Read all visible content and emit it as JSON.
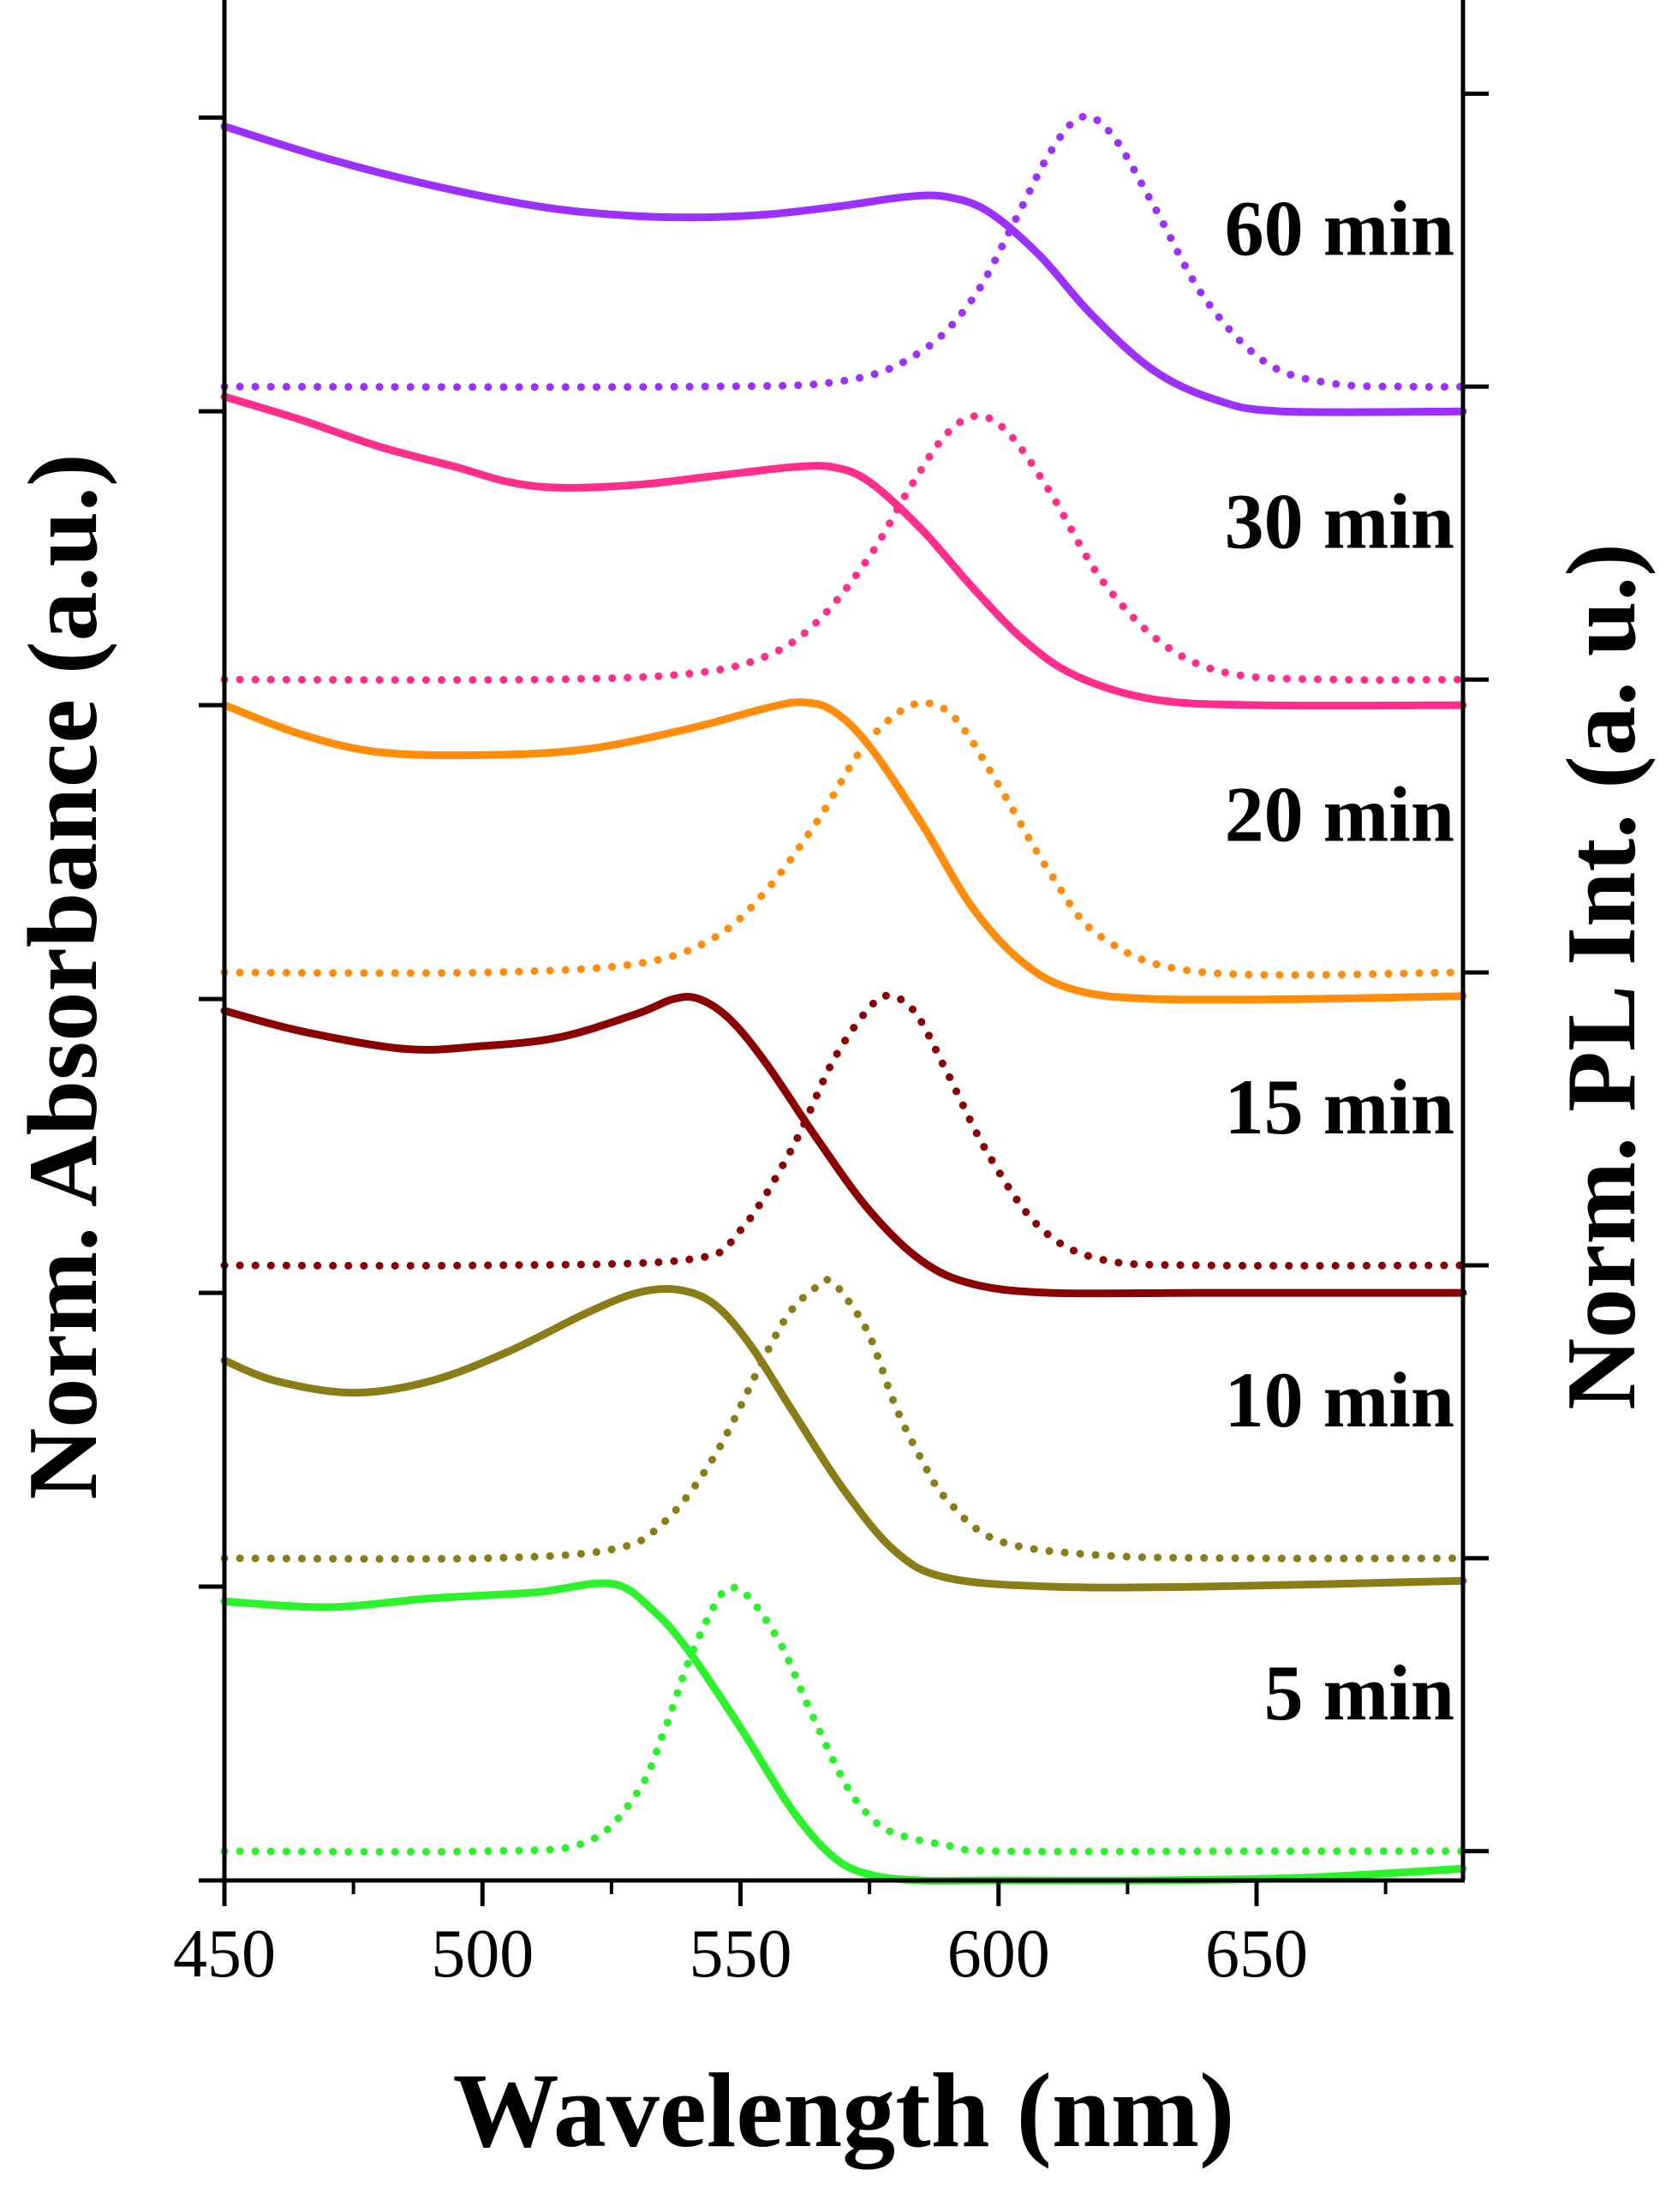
{
  "chart_data": {
    "type": "line",
    "xlabel": "Wavelength (nm)",
    "ylabel_left": "Norm. Absorbance (a.u.)",
    "ylabel_right": "Norm. PL Int. (a. u.)",
    "xlim": [
      450,
      690
    ],
    "x_ticks": [
      450,
      500,
      550,
      600,
      650
    ],
    "x_tick_labels": [
      "450",
      "500",
      "550",
      "600",
      "650"
    ],
    "x_minor_ticks": [
      475,
      525,
      575,
      625,
      675
    ],
    "ylim_left": [
      0,
      6.4
    ],
    "ylim_right": [
      0,
      6.42
    ],
    "y_ticks_left": [
      0,
      1,
      2,
      3,
      4,
      5,
      6
    ],
    "y_ticks_right": [
      0.1,
      1.1,
      2.1,
      3.1,
      4.1,
      5.1,
      6.1
    ],
    "grid": false,
    "legend": "none",
    "series": [
      {
        "name": "5 min",
        "color": "#2CF22C",
        "offset": 0,
        "absorbance": {
          "x": [
            450,
            470,
            490,
            510,
            525,
            533,
            540,
            550,
            560,
            568,
            575,
            585,
            600,
            630,
            660,
            690
          ],
          "y": [
            0.95,
            0.93,
            0.96,
            0.98,
            1.01,
            0.92,
            0.78,
            0.52,
            0.24,
            0.08,
            0.02,
            0.0,
            0.0,
            0.0,
            0.01,
            0.04
          ]
        },
        "pl": {
          "x": [
            450,
            500,
            520,
            530,
            535,
            540,
            545,
            548,
            552,
            558,
            563,
            570,
            575,
            580,
            590,
            600,
            650,
            690
          ],
          "y": [
            0.1,
            0.1,
            0.13,
            0.3,
            0.5,
            0.75,
            0.94,
            1.0,
            0.96,
            0.8,
            0.6,
            0.34,
            0.22,
            0.16,
            0.12,
            0.1,
            0.1,
            0.1
          ]
        }
      },
      {
        "name": "10 min",
        "color": "#8A7D18",
        "offset": 1,
        "absorbance": {
          "x": [
            450,
            460,
            475,
            490,
            505,
            520,
            530,
            538,
            545,
            552,
            560,
            570,
            580,
            590,
            610,
            640,
            690
          ],
          "y": [
            0.77,
            0.7,
            0.66,
            0.7,
            0.8,
            0.93,
            1.0,
            1.01,
            0.96,
            0.82,
            0.6,
            0.33,
            0.12,
            0.03,
            0.0,
            0.0,
            0.02
          ]
        },
        "pl": {
          "x": [
            450,
            500,
            525,
            535,
            545,
            555,
            560,
            565,
            567,
            570,
            575,
            580,
            585,
            590,
            600,
            620,
            650,
            690
          ],
          "y": [
            0.1,
            0.1,
            0.13,
            0.22,
            0.45,
            0.8,
            0.95,
            1.03,
            1.05,
            1.0,
            0.86,
            0.62,
            0.44,
            0.3,
            0.16,
            0.11,
            0.1,
            0.1
          ]
        }
      },
      {
        "name": "15 min",
        "color": "#8B0000",
        "offset": 2,
        "absorbance": {
          "x": [
            450,
            465,
            485,
            500,
            515,
            530,
            537,
            542,
            548,
            555,
            565,
            575,
            585,
            595,
            610,
            640,
            690
          ],
          "y": [
            0.96,
            0.89,
            0.83,
            0.84,
            0.87,
            0.95,
            1.0,
            1.0,
            0.93,
            0.78,
            0.52,
            0.28,
            0.11,
            0.03,
            0.0,
            0.0,
            0.0
          ]
        },
        "pl": {
          "x": [
            450,
            500,
            540,
            550,
            560,
            568,
            575,
            579,
            584,
            590,
            598,
            608,
            620,
            640,
            690
          ],
          "y": [
            0.1,
            0.1,
            0.12,
            0.22,
            0.5,
            0.8,
            0.98,
            1.02,
            0.96,
            0.76,
            0.48,
            0.23,
            0.12,
            0.1,
            0.1
          ]
        }
      },
      {
        "name": "20 min",
        "color": "#FF8C0A",
        "offset": 3,
        "absorbance": {
          "x": [
            450,
            465,
            480,
            500,
            520,
            540,
            555,
            562,
            568,
            575,
            585,
            595,
            605,
            615,
            630,
            660,
            690
          ],
          "y": [
            1.0,
            0.9,
            0.84,
            0.83,
            0.85,
            0.92,
            0.99,
            1.01,
            0.98,
            0.86,
            0.6,
            0.31,
            0.12,
            0.03,
            0.0,
            0.0,
            0.01
          ]
        },
        "pl": {
          "x": [
            450,
            500,
            530,
            545,
            555,
            565,
            573,
            580,
            586,
            592,
            600,
            610,
            620,
            640,
            690
          ],
          "y": [
            0.1,
            0.1,
            0.13,
            0.22,
            0.38,
            0.62,
            0.85,
            0.98,
            1.02,
            0.96,
            0.74,
            0.44,
            0.22,
            0.1,
            0.1
          ]
        }
      },
      {
        "name": "30 min",
        "color": "#FF2E8C",
        "offset": 4,
        "absorbance": {
          "x": [
            450,
            465,
            480,
            495,
            505,
            515,
            530,
            545,
            560,
            568,
            575,
            585,
            595,
            605,
            615,
            630,
            650,
            690
          ],
          "y": [
            1.05,
            0.97,
            0.88,
            0.81,
            0.76,
            0.74,
            0.75,
            0.78,
            0.81,
            0.81,
            0.76,
            0.6,
            0.4,
            0.22,
            0.1,
            0.02,
            0.0,
            0.0
          ]
        },
        "pl": {
          "x": [
            450,
            510,
            540,
            555,
            565,
            575,
            583,
            590,
            596,
            602,
            610,
            620,
            632,
            645,
            665,
            690
          ],
          "y": [
            0.1,
            0.1,
            0.12,
            0.18,
            0.3,
            0.52,
            0.76,
            0.94,
            1.0,
            0.94,
            0.74,
            0.44,
            0.22,
            0.12,
            0.1,
            0.1
          ]
        }
      },
      {
        "name": "60 min",
        "color": "#9B30FF",
        "offset": 5,
        "absorbance": {
          "x": [
            450,
            470,
            490,
            510,
            525,
            540,
            555,
            570,
            582,
            590,
            598,
            608,
            618,
            630,
            642,
            655,
            690
          ],
          "y": [
            0.97,
            0.86,
            0.77,
            0.7,
            0.67,
            0.66,
            0.67,
            0.7,
            0.73,
            0.73,
            0.68,
            0.53,
            0.33,
            0.14,
            0.04,
            0.0,
            0.0
          ]
        },
        "pl": {
          "x": [
            450,
            540,
            570,
            585,
            595,
            603,
            610,
            616,
            622,
            630,
            640,
            652,
            665,
            680,
            690
          ],
          "y": [
            0.1,
            0.1,
            0.12,
            0.22,
            0.4,
            0.66,
            0.9,
            1.02,
            0.96,
            0.72,
            0.4,
            0.18,
            0.11,
            0.1,
            0.1
          ]
        }
      }
    ]
  }
}
